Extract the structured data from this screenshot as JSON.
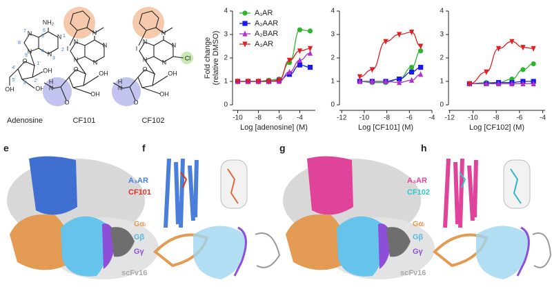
{
  "structures": [
    {
      "name": "Adenosine",
      "atoms": [
        "NH₂",
        "N",
        "N",
        "N",
        "N",
        "O",
        "OH",
        "OH",
        "OH"
      ],
      "numbers": [
        "1",
        "2",
        "3",
        "4",
        "5",
        "6",
        "7",
        "8",
        "9",
        "1'",
        "2'",
        "3'",
        "4'",
        "5'"
      ]
    },
    {
      "name": "CF101",
      "atoms": [
        "N",
        "I",
        "N",
        "N",
        "N",
        "N",
        "O",
        "OH",
        "OH",
        "H",
        "N",
        "O"
      ]
    },
    {
      "name": "CF102",
      "atoms": [
        "N",
        "I",
        "N",
        "N",
        "N",
        "N",
        "Cl",
        "O",
        "OH",
        "OH",
        "H",
        "N",
        "O"
      ]
    }
  ],
  "chart_data": [
    {
      "type": "line",
      "x": [
        -10,
        -9,
        -8,
        -7,
        -6,
        -5,
        -4,
        -3
      ],
      "xlim": [
        -10.5,
        -2.5
      ],
      "xticks": [
        -10,
        -8,
        -6,
        -4
      ],
      "ylim": [
        0,
        4
      ],
      "yticks": [
        0,
        1,
        2,
        3,
        4
      ],
      "xlabel": "Log [adenosine] (M)",
      "ylabel": [
        "Fold change",
        "(relative DMSO)"
      ],
      "legend": "upper left",
      "series": [
        {
          "name": "A₁AR",
          "color": "#2db52d",
          "marker": "circle",
          "values": [
            1,
            1,
            1,
            1.05,
            1.1,
            1.8,
            3.2,
            3.15
          ]
        },
        {
          "name": "A₂AAR",
          "color": "#1a1ae6",
          "marker": "square",
          "values": [
            1,
            1,
            1,
            1,
            1.05,
            1.3,
            1.7,
            1.6
          ]
        },
        {
          "name": "A₂BAR",
          "color": "#b030c8",
          "marker": "triangle-up",
          "values": [
            1,
            1,
            1,
            1,
            1,
            1.4,
            1.9,
            2.2
          ]
        },
        {
          "name": "A₃AR",
          "color": "#e02020",
          "marker": "triangle-down",
          "values": [
            1,
            1,
            1,
            1,
            1.05,
            1.9,
            2.3,
            2.4
          ]
        }
      ]
    },
    {
      "type": "line",
      "x": [
        -10.4,
        -9.3,
        -8.1,
        -6.9,
        -5.8,
        -5
      ],
      "xlim": [
        -12.2,
        -4
      ],
      "xticks": [
        -12,
        -10,
        -8,
        -6,
        -4
      ],
      "ylim": [
        0,
        4
      ],
      "yticks": [
        0,
        1,
        2,
        3,
        4
      ],
      "xlabel": "Log [CF101] (M)",
      "series": [
        {
          "color": "#2db52d",
          "marker": "circle",
          "values": [
            1,
            0.95,
            0.95,
            1.1,
            1.6,
            2.3
          ]
        },
        {
          "color": "#1a1ae6",
          "marker": "square",
          "values": [
            1,
            1,
            1,
            1.1,
            1.4,
            1.6
          ]
        },
        {
          "color": "#b030c8",
          "marker": "triangle-up",
          "values": [
            1,
            1,
            1,
            0.95,
            1.05,
            1.3
          ]
        },
        {
          "color": "#e02020",
          "marker": "triangle-down",
          "values": [
            1.2,
            1.5,
            2.7,
            3.0,
            3.1,
            2.5
          ]
        }
      ]
    },
    {
      "type": "line",
      "x": [
        -10.3,
        -8.85,
        -7.8,
        -6.65,
        -5.7,
        -4.8
      ],
      "xlim": [
        -12.1,
        -3.8
      ],
      "xticks": [
        -12,
        -10,
        -8,
        -6,
        -4
      ],
      "ylim": [
        0,
        4
      ],
      "yticks": [
        0,
        1,
        2,
        3,
        4
      ],
      "xlabel": "Log [CF102] (M)",
      "series": [
        {
          "color": "#2db52d",
          "marker": "circle",
          "values": [
            0.9,
            0.95,
            0.95,
            1.1,
            1.5,
            1.75
          ]
        },
        {
          "color": "#1a1ae6",
          "marker": "square",
          "values": [
            0.9,
            0.9,
            0.95,
            0.95,
            1,
            1
          ]
        },
        {
          "color": "#b030c8",
          "marker": "triangle-up",
          "values": [
            0.9,
            0.9,
            0.9,
            0.9,
            0.9,
            0.9
          ]
        },
        {
          "color": "#e02020",
          "marker": "triangle-down",
          "values": [
            0.9,
            1.4,
            2.4,
            2.7,
            2.45,
            2.4
          ]
        }
      ]
    }
  ],
  "panels": [
    {
      "letter": "e"
    },
    {
      "letter": "f",
      "labels": [
        "A₃AR",
        "CF101",
        "Gαᵢ",
        "Gβ",
        "Gγ",
        "scFv16"
      ]
    },
    {
      "letter": "g"
    },
    {
      "letter": "h",
      "labels": [
        "A₃AR",
        "CF102",
        "Gαᵢ",
        "Gβ",
        "Gγ",
        "scFv16"
      ]
    }
  ]
}
